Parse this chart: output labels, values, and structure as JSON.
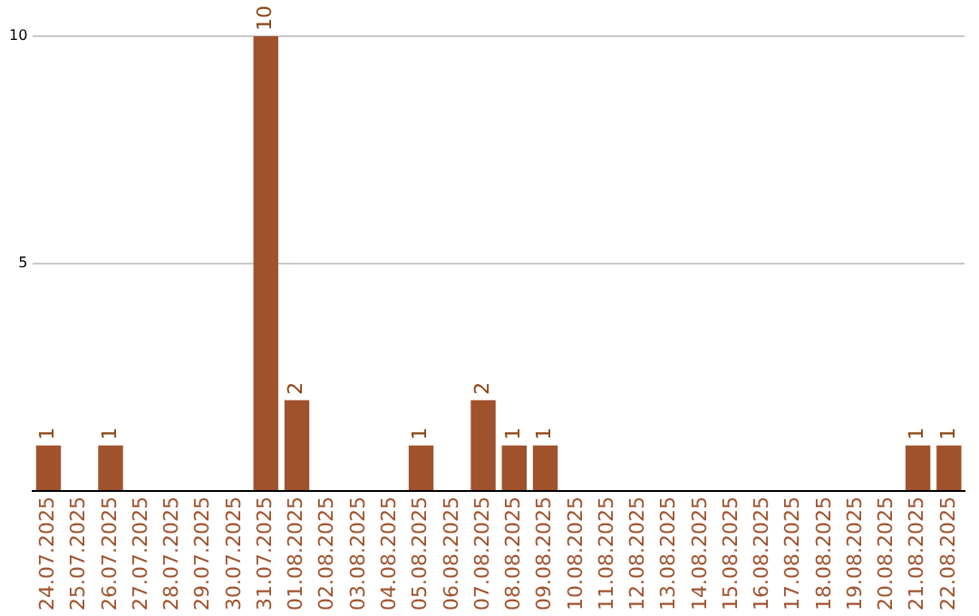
{
  "chart_data": {
    "type": "bar",
    "categories": [
      "24.07.2025",
      "25.07.2025",
      "26.07.2025",
      "27.07.2025",
      "28.07.2025",
      "29.07.2025",
      "30.07.2025",
      "31.07.2025",
      "01.08.2025",
      "02.08.2025",
      "03.08.2025",
      "04.08.2025",
      "05.08.2025",
      "06.08.2025",
      "07.08.2025",
      "08.08.2025",
      "09.08.2025",
      "10.08.2025",
      "11.08.2025",
      "12.08.2025",
      "13.08.2025",
      "14.08.2025",
      "15.08.2025",
      "16.08.2025",
      "17.08.2025",
      "18.08.2025",
      "19.08.2025",
      "20.08.2025",
      "21.08.2025",
      "22.08.2025"
    ],
    "values": [
      1,
      0,
      1,
      0,
      0,
      0,
      0,
      10,
      2,
      0,
      0,
      0,
      1,
      0,
      2,
      1,
      1,
      0,
      0,
      0,
      0,
      0,
      0,
      0,
      0,
      0,
      0,
      0,
      1,
      1
    ],
    "value_labels": [
      "1",
      null,
      "1",
      null,
      null,
      null,
      null,
      "10",
      "2",
      null,
      null,
      null,
      "1",
      null,
      "2",
      "1",
      "1",
      null,
      null,
      null,
      null,
      null,
      null,
      null,
      null,
      null,
      null,
      null,
      "1",
      "1"
    ],
    "color": "#a0522d",
    "ylim": [
      0,
      10
    ],
    "yticks": [
      {
        "value": 0,
        "label": null
      },
      5,
      10
    ],
    "grid": "y",
    "legend": false
  }
}
